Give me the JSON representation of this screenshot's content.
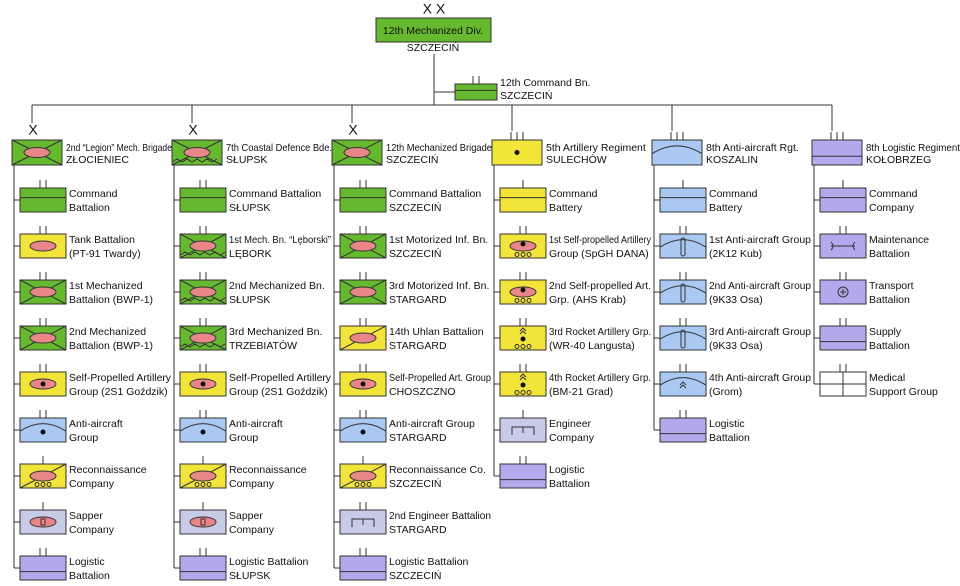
{
  "root": {
    "echelon": "X X",
    "name": "12th Mechanized Div.",
    "location": "SZCZECIŃ"
  },
  "command": {
    "name": "12th Command Bn.",
    "location": "SZCZECIŃ"
  },
  "columns": [
    {
      "echelon": "X",
      "name": "2nd “Legion” Mech. Brigade",
      "location": "ZŁOCIENIEC",
      "units": [
        [
          "Command",
          "Battalion"
        ],
        [
          "Tank Battalion",
          "(PT-91 Twardy)"
        ],
        [
          "1st Mechanized",
          "Battalion (BWP-1)"
        ],
        [
          "2nd Mechanized",
          "Battalion (BWP-1)"
        ],
        [
          "Self-Propelled Artillery",
          "Group (2S1 Goździk)"
        ],
        [
          "Anti-aircraft",
          "Group"
        ],
        [
          "Reconnaissance",
          "Company"
        ],
        [
          "Sapper",
          "Company"
        ],
        [
          "Logistic",
          "Battalion"
        ]
      ]
    },
    {
      "echelon": "X",
      "name": "7th Coastal Defence Bde.",
      "location": "SŁUPSK",
      "units": [
        [
          "Command Battalion",
          "SŁUPSK"
        ],
        [
          "1st Mech. Bn. “Lęborski”",
          "LĘBORK"
        ],
        [
          "2nd Mechanized Bn.",
          "SŁUPSK"
        ],
        [
          "3rd Mechanized Bn.",
          "TRZEBIATÓW"
        ],
        [
          "Self-Propelled Artillery",
          "Group (2S1 Goździk)"
        ],
        [
          "Anti-aircraft",
          "Group"
        ],
        [
          "Reconnaissance",
          "Company"
        ],
        [
          "Sapper",
          "Company"
        ],
        [
          "Logistic Battalion",
          "SŁUPSK"
        ]
      ]
    },
    {
      "echelon": "X",
      "name": "12th Mechanized Brigade",
      "location": "SZCZECIŃ",
      "units": [
        [
          "Command Battalion",
          "SZCZECIŃ"
        ],
        [
          "1st Motorized Inf. Bn.",
          "SZCZECIŃ"
        ],
        [
          "3rd Motorized Inf. Bn.",
          "STARGARD"
        ],
        [
          "14th Uhlan Battalion",
          "STARGARD"
        ],
        [
          "Self-Propelled Art. Group",
          "CHOSZCZNO"
        ],
        [
          "Anti-aircraft Group",
          "STARGARD"
        ],
        [
          "Reconnaissance Co.",
          "SZCZECIŃ"
        ],
        [
          "2nd Engineer Battalion",
          "STARGARD"
        ],
        [
          "Logistic Battalion",
          "SZCZECIŃ"
        ]
      ]
    },
    {
      "name": "5th Artillery Regiment",
      "location": "SULECHÓW",
      "units": [
        [
          "Command",
          "Battery"
        ],
        [
          "1st Self-propelled Artillery",
          "Group (SpGH DANA)"
        ],
        [
          "2nd Self-propelled Art.",
          "Grp. (AHS Krab)"
        ],
        [
          "3rd Rocket Artillery Grp.",
          "(WR-40 Langusta)"
        ],
        [
          "4th Rocket Artillery Grp.",
          "(BM-21 Grad)"
        ],
        [
          "Engineer",
          "Company"
        ],
        [
          "Logistic",
          "Battalion"
        ]
      ]
    },
    {
      "name": "8th Anti-aircraft Rgt.",
      "location": "KOSZALIN",
      "units": [
        [
          "Command",
          "Battery"
        ],
        [
          "1st Anti-aircraft Group",
          "(2K12 Kub)"
        ],
        [
          "2nd Anti-aircraft Group",
          "(9K33 Osa)"
        ],
        [
          "3rd Anti-aircraft Group",
          "(9K33 Osa)"
        ],
        [
          "4th Anti-aircraft Group",
          "(Grom)"
        ],
        [
          "Logistic",
          "Battalion"
        ]
      ]
    },
    {
      "name": "8th Logistic Regiment",
      "location": "KOŁOBRZEG",
      "units": [
        [
          "Command",
          "Company"
        ],
        [
          "Maintenance",
          "Battalion"
        ],
        [
          "Transport",
          "Battalion"
        ],
        [
          "Supply",
          "Battalion"
        ],
        [
          "Medical",
          "Support Group"
        ]
      ]
    }
  ]
}
